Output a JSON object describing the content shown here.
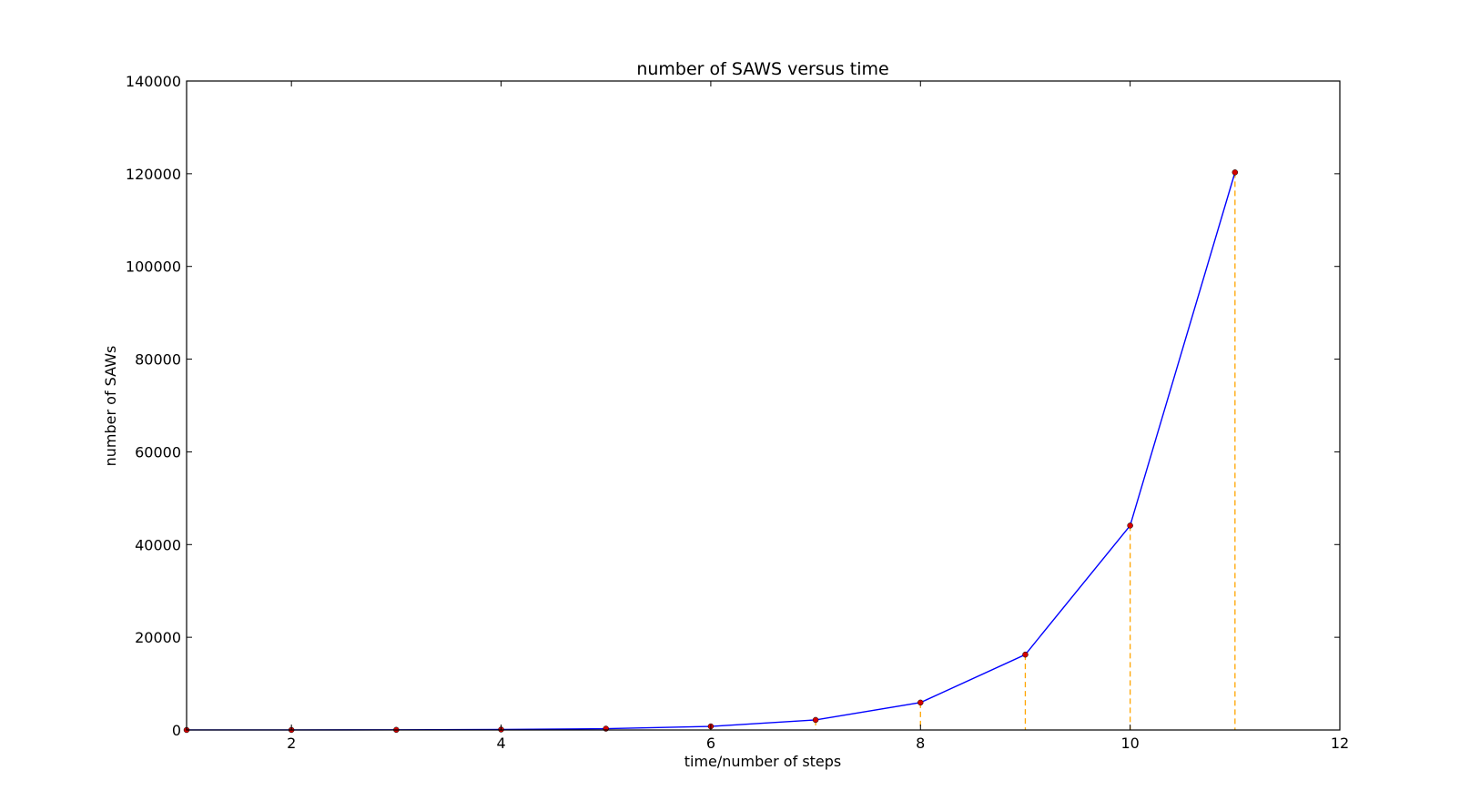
{
  "chart_data": {
    "type": "line",
    "title": "number of SAWS versus time",
    "xlabel": "time/number of steps",
    "ylabel": "number of SAWs",
    "xlim": [
      1,
      12
    ],
    "ylim": [
      0,
      140000
    ],
    "xticks": [
      2,
      4,
      6,
      8,
      10,
      12
    ],
    "yticks": [
      0,
      20000,
      40000,
      60000,
      80000,
      100000,
      120000,
      140000
    ],
    "grid": false,
    "series": [
      {
        "x": [
          1,
          2,
          3,
          4,
          5,
          6,
          7,
          8,
          9,
          10,
          11
        ],
        "values": [
          4,
          12,
          36,
          100,
          284,
          780,
          2172,
          5916,
          16268,
          44100,
          120292
        ],
        "color": "#0000ff",
        "marker_color": "#d40000",
        "dropline_color": "#ffa500"
      }
    ]
  }
}
